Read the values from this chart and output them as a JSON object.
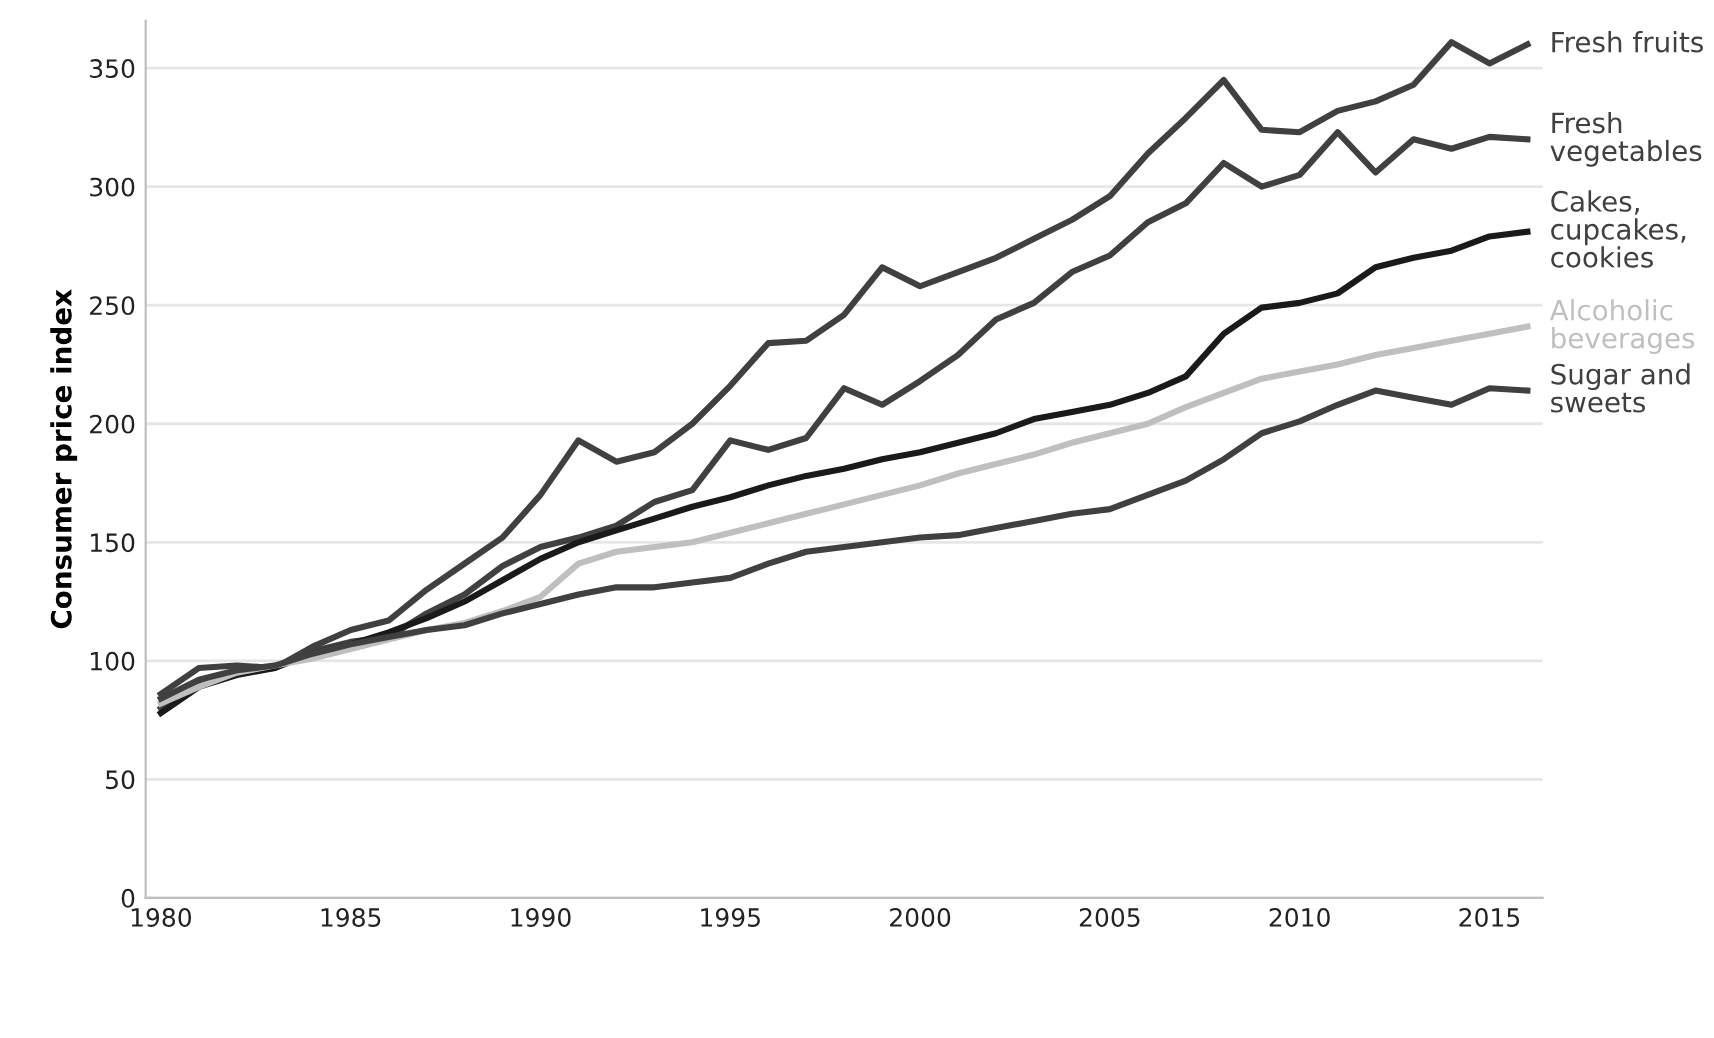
{
  "chart_data": {
    "type": "line",
    "ylabel": "Consumer price index",
    "x": [
      1980,
      1981,
      1982,
      1983,
      1984,
      1985,
      1986,
      1987,
      1988,
      1989,
      1990,
      1991,
      1992,
      1993,
      1994,
      1995,
      1996,
      1997,
      1998,
      1999,
      2000,
      2001,
      2002,
      2003,
      2004,
      2005,
      2006,
      2007,
      2008,
      2009,
      2010,
      2011,
      2012,
      2013,
      2014,
      2015,
      2016
    ],
    "series": [
      {
        "name": "Fresh fruits",
        "color": "#404040",
        "values": [
          86,
          97,
          98,
          97,
          106,
          113,
          117,
          130,
          141,
          152,
          170,
          193,
          184,
          188,
          200,
          216,
          234,
          235,
          246,
          266,
          258,
          264,
          270,
          278,
          286,
          296,
          314,
          329,
          345,
          324,
          323,
          332,
          336,
          343,
          361,
          352,
          360
        ]
      },
      {
        "name": "Fresh vegetables",
        "color": "#404040",
        "values": [
          80,
          90,
          95,
          97,
          104,
          108,
          110,
          120,
          128,
          140,
          148,
          152,
          157,
          167,
          172,
          193,
          189,
          194,
          215,
          208,
          218,
          229,
          244,
          251,
          264,
          271,
          285,
          293,
          310,
          300,
          305,
          323,
          306,
          320,
          316,
          321,
          320
        ]
      },
      {
        "name": "Cakes, cupcakes, cookies",
        "color": "#1a1a1a",
        "values": [
          78,
          89,
          94,
          97,
          103,
          107,
          112,
          118,
          125,
          134,
          143,
          150,
          155,
          160,
          165,
          169,
          174,
          178,
          181,
          185,
          188,
          192,
          196,
          202,
          205,
          208,
          213,
          220,
          238,
          249,
          251,
          255,
          266,
          270,
          273,
          279,
          281
        ]
      },
      {
        "name": "Alcoholic beverages",
        "color": "#bfbfbf",
        "values": [
          82,
          89,
          95,
          98,
          101,
          105,
          109,
          113,
          116,
          121,
          127,
          141,
          146,
          148,
          150,
          154,
          158,
          162,
          166,
          170,
          174,
          179,
          183,
          187,
          192,
          196,
          200,
          207,
          213,
          219,
          222,
          225,
          229,
          232,
          235,
          238,
          241
        ]
      },
      {
        "name": "Sugar and sweets",
        "color": "#404040",
        "values": [
          84,
          92,
          96,
          98,
          103,
          107,
          110,
          113,
          115,
          120,
          124,
          128,
          131,
          131,
          133,
          135,
          141,
          146,
          148,
          150,
          152,
          153,
          156,
          159,
          162,
          164,
          170,
          176,
          185,
          196,
          201,
          208,
          214,
          211,
          208,
          215,
          214
        ]
      }
    ],
    "xlim": [
      1979.6,
      2016.4
    ],
    "xticks": [
      1980,
      1985,
      1990,
      1995,
      2000,
      2005,
      2010,
      2015
    ],
    "ylim": [
      0,
      370
    ],
    "yticks": [
      0,
      50,
      100,
      150,
      200,
      250,
      300,
      350
    ],
    "grid": "y",
    "legend": false
  }
}
